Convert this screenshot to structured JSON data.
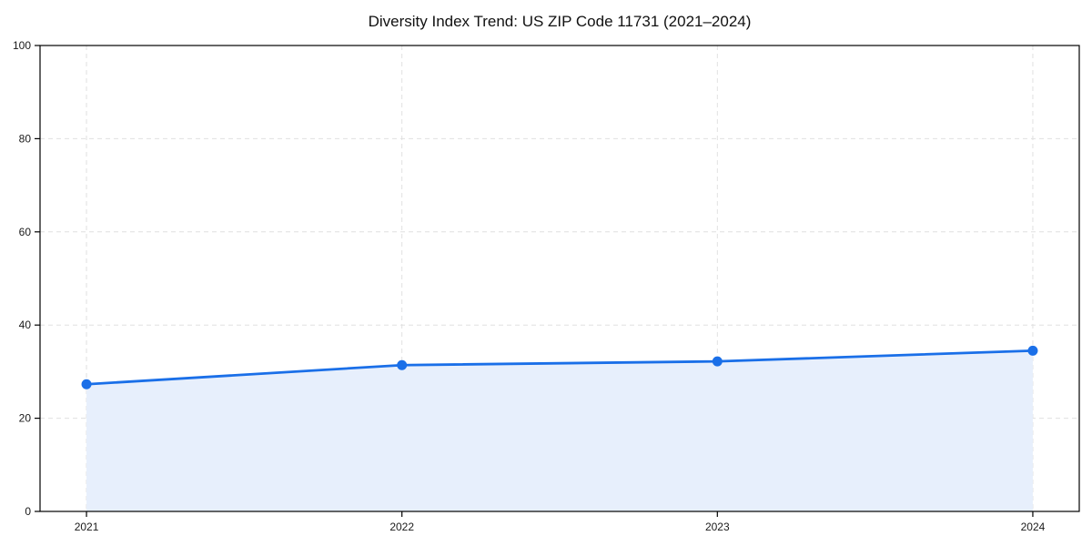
{
  "chart_data": {
    "type": "area",
    "title": "Diversity Index Trend: US ZIP Code 11731 (2021–2024)",
    "categories": [
      "2021",
      "2022",
      "2023",
      "2024"
    ],
    "series": [
      {
        "name": "Diversity Index",
        "values": [
          27.3,
          31.4,
          32.2,
          34.5
        ]
      }
    ],
    "xlabel": "",
    "ylabel": "",
    "ylim": [
      0,
      100
    ],
    "yticks": [
      0,
      20,
      40,
      60,
      80,
      100
    ],
    "grid": "dashed, horizontal and vertical, light gray",
    "legend": "none",
    "marker": "circle",
    "colors": {
      "line": "#1a6fe8",
      "marker": "#1a6fe8",
      "fill": "#e7effc",
      "grid": "#e0e0e0",
      "spine": "#000000",
      "tick_label": "#1a1a1a",
      "background": "#ffffff"
    }
  }
}
